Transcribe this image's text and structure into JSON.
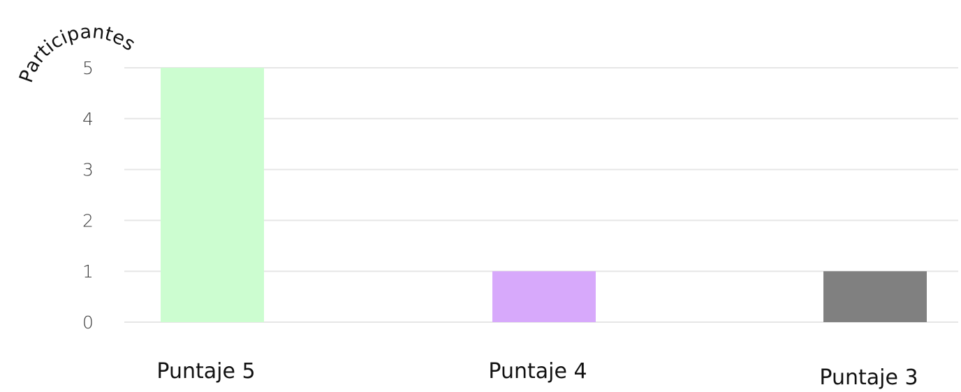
{
  "chart_data": {
    "type": "bar",
    "ylabel": "Participantes",
    "xlabel": "",
    "categories": [
      "Puntaje 5",
      "Puntaje 4",
      "Puntaje 3"
    ],
    "values": [
      5,
      1,
      1
    ],
    "bar_colors": [
      "#ccfdd0",
      "#d7a9fb",
      "#808080"
    ],
    "ylim": [
      0,
      5
    ],
    "yticks": [
      "0",
      "1",
      "2",
      "3",
      "4",
      "5"
    ],
    "grid": true,
    "legend": "none"
  }
}
